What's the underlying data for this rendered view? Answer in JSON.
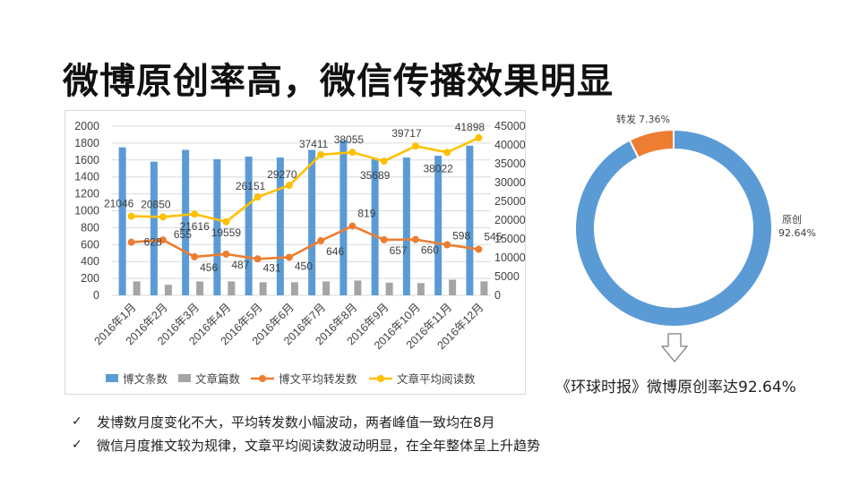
{
  "title": "微博原创率高，微信传播效果明显",
  "chart_data": [
    {
      "type": "bar+line",
      "categories": [
        "2016年1月",
        "2016年2月",
        "2016年3月",
        "2016年4月",
        "2016年5月",
        "2016年6月",
        "2016年7月",
        "2016年8月",
        "2016年9月",
        "2016年10月",
        "2016年11月",
        "2016年12月"
      ],
      "y_left": {
        "ylim": [
          0,
          2000
        ],
        "ticks": [
          "0",
          "200",
          "400",
          "600",
          "800",
          "1000",
          "1200",
          "1400",
          "1600",
          "1800",
          "2000"
        ]
      },
      "y_right": {
        "ylim": [
          0,
          45000
        ],
        "ticks": [
          "0",
          "5000",
          "10000",
          "15000",
          "20000",
          "25000",
          "30000",
          "35000",
          "40000",
          "45000"
        ]
      },
      "series": [
        {
          "name": "博文条数",
          "kind": "bar",
          "axis": "left",
          "color": "#5b9bd5",
          "values": [
            1750,
            1580,
            1720,
            1610,
            1640,
            1630,
            1720,
            1830,
            1610,
            1630,
            1650,
            1770
          ]
        },
        {
          "name": "文章篇数",
          "kind": "bar",
          "axis": "left",
          "color": "#a5a5a5",
          "values": [
            165,
            125,
            165,
            165,
            155,
            155,
            165,
            175,
            150,
            145,
            185,
            165
          ]
        },
        {
          "name": "博文平均转发数",
          "kind": "line",
          "axis": "left",
          "color": "#ed7d31",
          "values": [
            628,
            655,
            456,
            487,
            431,
            450,
            646,
            819,
            657,
            660,
            598,
            545
          ],
          "labels": [
            "628",
            "655",
            "456",
            "487",
            "431",
            "450",
            "646",
            "819",
            "657",
            "660",
            "598",
            "545"
          ]
        },
        {
          "name": "文章平均阅读数",
          "kind": "line",
          "axis": "right",
          "color": "#ffc000",
          "values": [
            21046,
            20850,
            21616,
            19559,
            26151,
            29270,
            37411,
            38055,
            35689,
            39717,
            38022,
            41898
          ],
          "labels": [
            "21046",
            "20850",
            "21616",
            "19559",
            "26151",
            "29270",
            "37411",
            "38055",
            "35689",
            "39717",
            "38022",
            "41898"
          ]
        }
      ],
      "legend": "bottom"
    },
    {
      "type": "pie",
      "style": "donut",
      "slices": [
        {
          "name": "原创",
          "value": 92.64,
          "label": "92.64%",
          "color": "#5b9bd5"
        },
        {
          "name": "转发",
          "value": 7.36,
          "label": "7.36%",
          "color": "#ed7d31"
        }
      ]
    }
  ],
  "caption": "《环球时报》微博原创率达92.64%",
  "bullets": [
    {
      "mark": "✓",
      "text": "发博数月度变化不大，平均转发数小幅波动，两者峰值一致均在8月"
    },
    {
      "mark": "✓",
      "text": "微信月度推文较为规律，文章平均阅读数波动明显，在全年整体呈上升趋势"
    }
  ],
  "arrow_icon": "down-arrow-icon"
}
